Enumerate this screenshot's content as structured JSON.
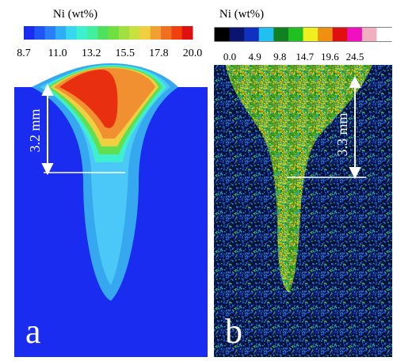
{
  "panels": [
    {
      "label": "a",
      "colorbar": {
        "title": "Ni (wt%)",
        "ticks": [
          "8.7",
          "11.0",
          "13.2",
          "15.5",
          "17.8",
          "20.0"
        ]
      },
      "annotation": "3.2 mm"
    },
    {
      "label": "b",
      "colorbar": {
        "title": "Ni (wt%)",
        "ticks": [
          "0.0",
          "4.9",
          "9.8",
          "14.7",
          "19.6",
          "24.5"
        ]
      },
      "annotation": "3.3 mm"
    }
  ]
}
